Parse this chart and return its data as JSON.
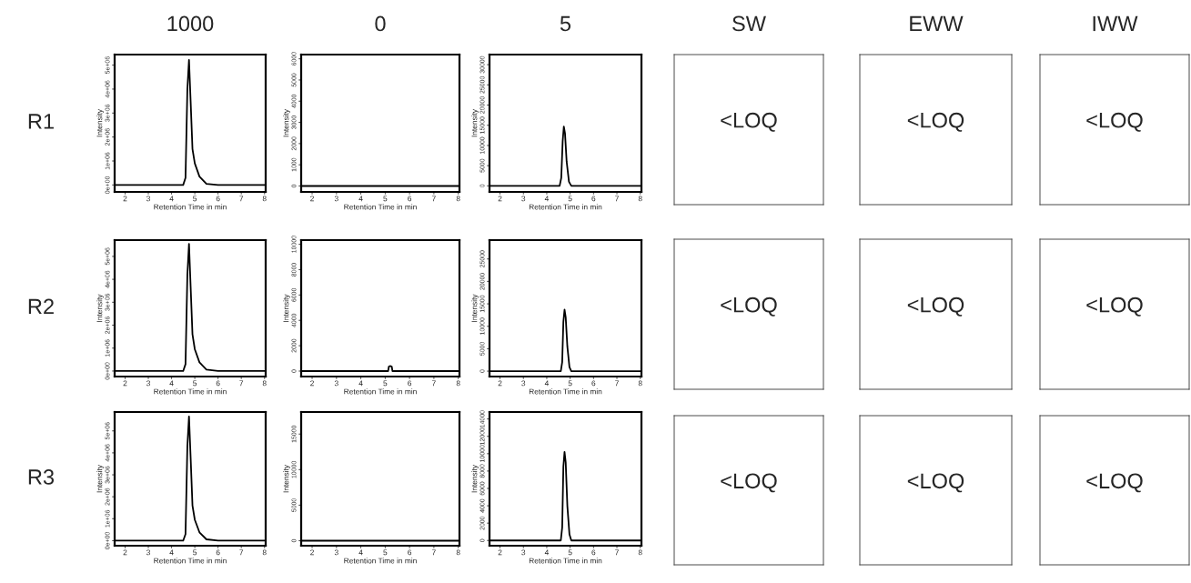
{
  "chart_data": [
    {
      "type": "line",
      "title": "1000",
      "annotations": [
        "R1"
      ],
      "xlabel": "Retention Time in min",
      "ylabel": "Intensity",
      "xlim": [
        1.55,
        8.05
      ],
      "xticks": [
        2,
        3,
        4,
        5,
        6,
        7,
        8
      ],
      "ylim": [
        -290000,
        5440000
      ],
      "yticks": [
        {
          "value": 0,
          "label": "0e+00"
        },
        {
          "value": 1000000,
          "label": "1e+06"
        },
        {
          "value": 2000000,
          "label": "2e+06"
        },
        {
          "value": 3000000,
          "label": "3e+06"
        },
        {
          "value": 4000000,
          "label": "4e+06"
        },
        {
          "value": 5000000,
          "label": "5e+06"
        }
      ],
      "grid": false,
      "series": [
        {
          "color": "#000000",
          "x": [
            1.55,
            4.5,
            4.6,
            4.68,
            4.75,
            4.82,
            4.9,
            5.0,
            5.2,
            5.5,
            6.0,
            8.05
          ],
          "values": [
            0,
            0,
            300000,
            4000000,
            5220000,
            3500000,
            1500000,
            900000,
            350000,
            50000,
            0,
            0
          ]
        }
      ]
    },
    {
      "type": "line",
      "title": "0",
      "xlabel": "Retention Time in min",
      "ylabel": "Intensity",
      "xlim": [
        1.55,
        8.05
      ],
      "xticks": [
        2,
        3,
        4,
        5,
        6,
        7,
        8
      ],
      "ylim": [
        -280,
        6200
      ],
      "yticks": [
        0,
        1000,
        2000,
        3000,
        4000,
        5000,
        6000
      ],
      "grid": false,
      "series": [
        {
          "color": "#000000",
          "x": [
            1.55,
            8.05
          ],
          "values": [
            0,
            0
          ]
        }
      ]
    },
    {
      "type": "line",
      "title": "5",
      "xlabel": "Retention Time in min",
      "ylabel": "Intensity",
      "xlim": [
        1.55,
        8.05
      ],
      "xticks": [
        2,
        3,
        4,
        5,
        6,
        7,
        8
      ],
      "ylim": [
        -1500,
        32500
      ],
      "yticks": [
        0,
        5000,
        10000,
        15000,
        20000,
        25000,
        30000
      ],
      "grid": false,
      "series": [
        {
          "color": "#000000",
          "x": [
            1.55,
            4.55,
            4.62,
            4.68,
            4.73,
            4.78,
            4.85,
            4.95,
            5.05,
            8.05
          ],
          "values": [
            0,
            0,
            2000,
            11000,
            14700,
            13000,
            6000,
            1000,
            0,
            0
          ]
        }
      ]
    },
    {
      "type": "other",
      "title": "SW",
      "annotations": [
        "<LOQ"
      ]
    },
    {
      "type": "other",
      "title": "EWW",
      "annotations": [
        "<LOQ"
      ]
    },
    {
      "type": "other",
      "title": "IWW",
      "annotations": [
        "<LOQ"
      ]
    },
    {
      "type": "line",
      "annotations": [
        "R2"
      ],
      "xlabel": "Retention Time in min",
      "ylabel": "Intensity",
      "xlim": [
        1.55,
        8.05
      ],
      "xticks": [
        2,
        3,
        4,
        5,
        6,
        7,
        8
      ],
      "ylim": [
        -240000,
        5710000
      ],
      "yticks": [
        {
          "value": 0,
          "label": "0e+00"
        },
        {
          "value": 1000000,
          "label": "1e+06"
        },
        {
          "value": 2000000,
          "label": "2e+06"
        },
        {
          "value": 3000000,
          "label": "3e+06"
        },
        {
          "value": 4000000,
          "label": "4e+06"
        },
        {
          "value": 5000000,
          "label": "5e+06"
        }
      ],
      "grid": false,
      "series": [
        {
          "color": "#000000",
          "x": [
            1.55,
            4.5,
            4.6,
            4.68,
            4.75,
            4.82,
            4.9,
            5.0,
            5.2,
            5.5,
            6.0,
            8.05
          ],
          "values": [
            0,
            0,
            300000,
            4200000,
            5550000,
            3700000,
            1600000,
            950000,
            380000,
            60000,
            0,
            0
          ]
        }
      ]
    },
    {
      "type": "line",
      "xlabel": "Retention Time in min",
      "ylabel": "Intensity",
      "xlim": [
        1.55,
        8.05
      ],
      "xticks": [
        2,
        3,
        4,
        5,
        6,
        7,
        8
      ],
      "ylim": [
        -430,
        10330
      ],
      "yticks": [
        0,
        2000,
        4000,
        6000,
        8000,
        10000
      ],
      "grid": false,
      "series": [
        {
          "color": "#000000",
          "x": [
            1.55,
            5.12,
            5.15,
            5.2,
            5.27,
            5.3,
            8.05
          ],
          "values": [
            0,
            0,
            350,
            400,
            350,
            0,
            0
          ]
        }
      ]
    },
    {
      "type": "line",
      "xlabel": "Retention Time in min",
      "ylabel": "Intensity",
      "xlim": [
        1.55,
        8.05
      ],
      "xticks": [
        2,
        3,
        4,
        5,
        6,
        7,
        8
      ],
      "ylim": [
        -1200,
        29200
      ],
      "yticks": [
        0,
        5000,
        10000,
        15000,
        20000,
        25000
      ],
      "grid": false,
      "series": [
        {
          "color": "#000000",
          "x": [
            1.55,
            4.6,
            4.66,
            4.71,
            4.76,
            4.81,
            4.88,
            4.97,
            5.05,
            8.05
          ],
          "values": [
            0,
            0,
            2000,
            11000,
            13700,
            12000,
            5500,
            900,
            0,
            0
          ]
        }
      ]
    },
    {
      "type": "other",
      "annotations": [
        "<LOQ"
      ]
    },
    {
      "type": "other",
      "annotations": [
        "<LOQ"
      ]
    },
    {
      "type": "other",
      "annotations": [
        "<LOQ"
      ]
    },
    {
      "type": "line",
      "annotations": [
        "R3"
      ],
      "xlabel": "Retention Time in min",
      "ylabel": "Intensity",
      "xlim": [
        1.55,
        8.05
      ],
      "xticks": [
        2,
        3,
        4,
        5,
        6,
        7,
        8
      ],
      "ylim": [
        -230000,
        5860000
      ],
      "yticks": [
        {
          "value": 0,
          "label": "0e+00"
        },
        {
          "value": 1000000,
          "label": "1e+06"
        },
        {
          "value": 2000000,
          "label": "2e+06"
        },
        {
          "value": 3000000,
          "label": "3e+06"
        },
        {
          "value": 4000000,
          "label": "4e+06"
        },
        {
          "value": 5000000,
          "label": "5e+06"
        }
      ],
      "grid": false,
      "series": [
        {
          "color": "#000000",
          "x": [
            1.55,
            4.5,
            4.6,
            4.68,
            4.75,
            4.82,
            4.9,
            5.0,
            5.2,
            5.5,
            6.0,
            8.05
          ],
          "values": [
            0,
            0,
            300000,
            4300000,
            5660000,
            3800000,
            1600000,
            950000,
            380000,
            60000,
            0,
            0
          ]
        }
      ]
    },
    {
      "type": "line",
      "xlabel": "Retention Time in min",
      "ylabel": "Intensity",
      "xlim": [
        1.55,
        8.05
      ],
      "xticks": [
        2,
        3,
        4,
        5,
        6,
        7,
        8
      ],
      "ylim": [
        -700,
        18100
      ],
      "yticks": [
        0,
        5000,
        10000,
        15000
      ],
      "grid": false,
      "series": [
        {
          "color": "#000000",
          "x": [
            1.55,
            8.05
          ],
          "values": [
            0,
            0
          ]
        }
      ]
    },
    {
      "type": "line",
      "xlabel": "Retention Time in min",
      "ylabel": "Intensity",
      "xlim": [
        1.55,
        8.05
      ],
      "xticks": [
        2,
        3,
        4,
        5,
        6,
        7,
        8
      ],
      "ylim": [
        -600,
        14800
      ],
      "yticks": [
        0,
        2000,
        4000,
        6000,
        8000,
        10000,
        12000,
        14000
      ],
      "grid": false,
      "series": [
        {
          "color": "#000000",
          "x": [
            1.55,
            4.6,
            4.66,
            4.71,
            4.76,
            4.81,
            4.88,
            4.97,
            5.05,
            8.05
          ],
          "values": [
            0,
            0,
            1500,
            8500,
            10200,
            9000,
            4000,
            700,
            0,
            0
          ]
        }
      ]
    },
    {
      "type": "other",
      "annotations": [
        "<LOQ"
      ]
    },
    {
      "type": "other",
      "annotations": [
        "<LOQ"
      ]
    },
    {
      "type": "other",
      "annotations": [
        "<LOQ"
      ]
    }
  ]
}
